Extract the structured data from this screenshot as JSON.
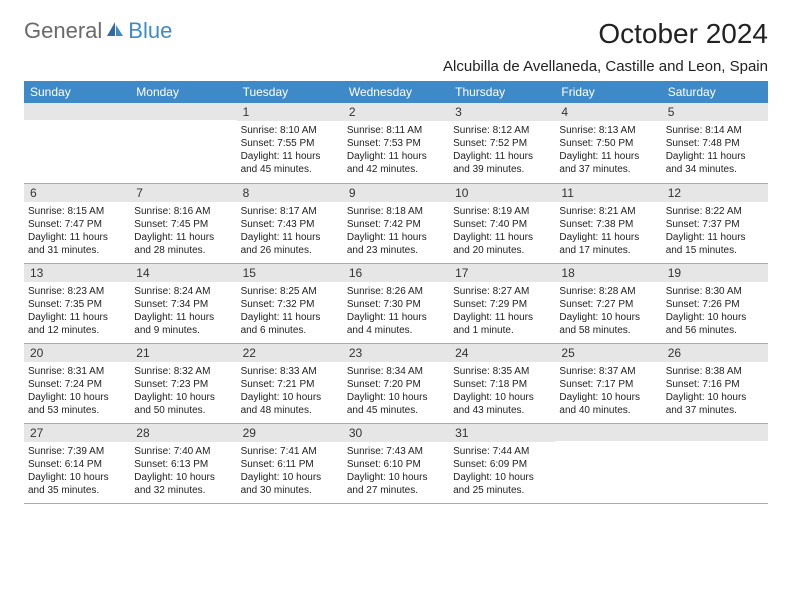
{
  "logo": {
    "general": "General",
    "blue": "Blue"
  },
  "title": "October 2024",
  "location": "Alcubilla de Avellaneda, Castille and Leon, Spain",
  "colors": {
    "header_bg": "#3e8ac8",
    "header_fg": "#ffffff",
    "daynum_bg": "#e6e6e6",
    "text": "#222222",
    "logo_gray": "#6a6a6a",
    "logo_blue": "#3e8ac8"
  },
  "weekdays": [
    "Sunday",
    "Monday",
    "Tuesday",
    "Wednesday",
    "Thursday",
    "Friday",
    "Saturday"
  ],
  "layout": {
    "first_weekday_index": 2,
    "days_in_month": 31
  },
  "days": {
    "1": {
      "sunrise": "Sunrise: 8:10 AM",
      "sunset": "Sunset: 7:55 PM",
      "daylight": "Daylight: 11 hours and 45 minutes."
    },
    "2": {
      "sunrise": "Sunrise: 8:11 AM",
      "sunset": "Sunset: 7:53 PM",
      "daylight": "Daylight: 11 hours and 42 minutes."
    },
    "3": {
      "sunrise": "Sunrise: 8:12 AM",
      "sunset": "Sunset: 7:52 PM",
      "daylight": "Daylight: 11 hours and 39 minutes."
    },
    "4": {
      "sunrise": "Sunrise: 8:13 AM",
      "sunset": "Sunset: 7:50 PM",
      "daylight": "Daylight: 11 hours and 37 minutes."
    },
    "5": {
      "sunrise": "Sunrise: 8:14 AM",
      "sunset": "Sunset: 7:48 PM",
      "daylight": "Daylight: 11 hours and 34 minutes."
    },
    "6": {
      "sunrise": "Sunrise: 8:15 AM",
      "sunset": "Sunset: 7:47 PM",
      "daylight": "Daylight: 11 hours and 31 minutes."
    },
    "7": {
      "sunrise": "Sunrise: 8:16 AM",
      "sunset": "Sunset: 7:45 PM",
      "daylight": "Daylight: 11 hours and 28 minutes."
    },
    "8": {
      "sunrise": "Sunrise: 8:17 AM",
      "sunset": "Sunset: 7:43 PM",
      "daylight": "Daylight: 11 hours and 26 minutes."
    },
    "9": {
      "sunrise": "Sunrise: 8:18 AM",
      "sunset": "Sunset: 7:42 PM",
      "daylight": "Daylight: 11 hours and 23 minutes."
    },
    "10": {
      "sunrise": "Sunrise: 8:19 AM",
      "sunset": "Sunset: 7:40 PM",
      "daylight": "Daylight: 11 hours and 20 minutes."
    },
    "11": {
      "sunrise": "Sunrise: 8:21 AM",
      "sunset": "Sunset: 7:38 PM",
      "daylight": "Daylight: 11 hours and 17 minutes."
    },
    "12": {
      "sunrise": "Sunrise: 8:22 AM",
      "sunset": "Sunset: 7:37 PM",
      "daylight": "Daylight: 11 hours and 15 minutes."
    },
    "13": {
      "sunrise": "Sunrise: 8:23 AM",
      "sunset": "Sunset: 7:35 PM",
      "daylight": "Daylight: 11 hours and 12 minutes."
    },
    "14": {
      "sunrise": "Sunrise: 8:24 AM",
      "sunset": "Sunset: 7:34 PM",
      "daylight": "Daylight: 11 hours and 9 minutes."
    },
    "15": {
      "sunrise": "Sunrise: 8:25 AM",
      "sunset": "Sunset: 7:32 PM",
      "daylight": "Daylight: 11 hours and 6 minutes."
    },
    "16": {
      "sunrise": "Sunrise: 8:26 AM",
      "sunset": "Sunset: 7:30 PM",
      "daylight": "Daylight: 11 hours and 4 minutes."
    },
    "17": {
      "sunrise": "Sunrise: 8:27 AM",
      "sunset": "Sunset: 7:29 PM",
      "daylight": "Daylight: 11 hours and 1 minute."
    },
    "18": {
      "sunrise": "Sunrise: 8:28 AM",
      "sunset": "Sunset: 7:27 PM",
      "daylight": "Daylight: 10 hours and 58 minutes."
    },
    "19": {
      "sunrise": "Sunrise: 8:30 AM",
      "sunset": "Sunset: 7:26 PM",
      "daylight": "Daylight: 10 hours and 56 minutes."
    },
    "20": {
      "sunrise": "Sunrise: 8:31 AM",
      "sunset": "Sunset: 7:24 PM",
      "daylight": "Daylight: 10 hours and 53 minutes."
    },
    "21": {
      "sunrise": "Sunrise: 8:32 AM",
      "sunset": "Sunset: 7:23 PM",
      "daylight": "Daylight: 10 hours and 50 minutes."
    },
    "22": {
      "sunrise": "Sunrise: 8:33 AM",
      "sunset": "Sunset: 7:21 PM",
      "daylight": "Daylight: 10 hours and 48 minutes."
    },
    "23": {
      "sunrise": "Sunrise: 8:34 AM",
      "sunset": "Sunset: 7:20 PM",
      "daylight": "Daylight: 10 hours and 45 minutes."
    },
    "24": {
      "sunrise": "Sunrise: 8:35 AM",
      "sunset": "Sunset: 7:18 PM",
      "daylight": "Daylight: 10 hours and 43 minutes."
    },
    "25": {
      "sunrise": "Sunrise: 8:37 AM",
      "sunset": "Sunset: 7:17 PM",
      "daylight": "Daylight: 10 hours and 40 minutes."
    },
    "26": {
      "sunrise": "Sunrise: 8:38 AM",
      "sunset": "Sunset: 7:16 PM",
      "daylight": "Daylight: 10 hours and 37 minutes."
    },
    "27": {
      "sunrise": "Sunrise: 7:39 AM",
      "sunset": "Sunset: 6:14 PM",
      "daylight": "Daylight: 10 hours and 35 minutes."
    },
    "28": {
      "sunrise": "Sunrise: 7:40 AM",
      "sunset": "Sunset: 6:13 PM",
      "daylight": "Daylight: 10 hours and 32 minutes."
    },
    "29": {
      "sunrise": "Sunrise: 7:41 AM",
      "sunset": "Sunset: 6:11 PM",
      "daylight": "Daylight: 10 hours and 30 minutes."
    },
    "30": {
      "sunrise": "Sunrise: 7:43 AM",
      "sunset": "Sunset: 6:10 PM",
      "daylight": "Daylight: 10 hours and 27 minutes."
    },
    "31": {
      "sunrise": "Sunrise: 7:44 AM",
      "sunset": "Sunset: 6:09 PM",
      "daylight": "Daylight: 10 hours and 25 minutes."
    }
  }
}
